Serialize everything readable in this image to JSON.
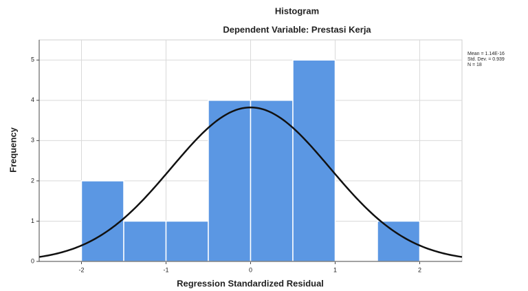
{
  "chart_data": {
    "type": "histogram",
    "title": "Histogram",
    "subtitle": "Dependent Variable: Prestasi Kerja",
    "x_label": "Regression Standardized Residual",
    "y_label": "Frequency",
    "bins": [
      -2,
      -1.5,
      -1,
      -0.5,
      0,
      0.5,
      1,
      1.5,
      2
    ],
    "values": [
      2,
      1,
      1,
      4,
      4,
      5,
      0,
      1
    ],
    "color": "#5b97e3",
    "xlim": [
      -2.5,
      2.5
    ],
    "xticks": [
      -2,
      -1,
      0,
      1,
      2
    ],
    "ylim": [
      0,
      5.5
    ],
    "yticks": [
      0,
      1,
      2,
      3,
      4,
      5
    ],
    "grid": true,
    "normal_curve": {
      "mean": 1.14e-16,
      "std_dev": 0.939,
      "n": 18,
      "color": "#111111",
      "labels": [
        "Mean = 1.14E-16",
        "Std. Dev. = 0.939",
        "N = 18"
      ]
    }
  }
}
